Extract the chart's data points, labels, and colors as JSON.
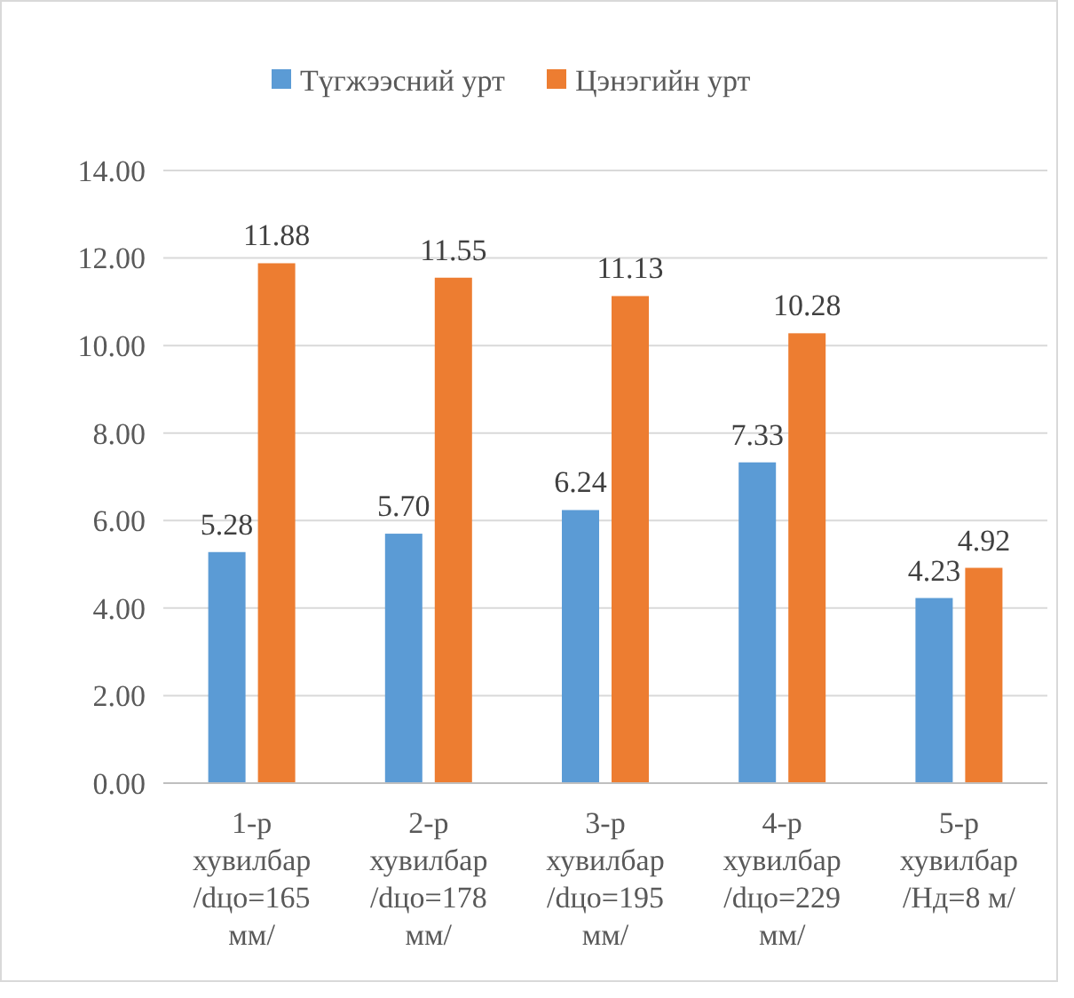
{
  "chart_data": {
    "type": "bar",
    "categories": [
      "1-р хувилбар /dцо=165 мм/",
      "2-р хувилбар /dцо=178 мм/",
      "3-р хувилбар /dцо=195 мм/",
      "4-р хувилбар /dцо=229 мм/",
      "5-р хувилбар /Нд=8 м/"
    ],
    "series": [
      {
        "name": "Түгжээсний урт",
        "color": "#5b9bd5",
        "values": [
          5.28,
          5.7,
          6.24,
          7.33,
          4.23
        ],
        "value_labels": [
          "5.28",
          "5.70",
          "6.24",
          "7.33",
          "4.23"
        ]
      },
      {
        "name": "Цэнэгийн урт",
        "color": "#ed7d31",
        "values": [
          11.88,
          11.55,
          11.13,
          10.28,
          4.92
        ],
        "value_labels": [
          "11.88",
          "11.55",
          "11.13",
          "10.28",
          "4.92"
        ]
      }
    ],
    "ylim": [
      0,
      14
    ],
    "yticks": [
      {
        "value": 0,
        "label": "0.00"
      },
      {
        "value": 2,
        "label": "2.00"
      },
      {
        "value": 4,
        "label": "4.00"
      },
      {
        "value": 6,
        "label": "6.00"
      },
      {
        "value": 8,
        "label": "8.00"
      },
      {
        "value": 10,
        "label": "10.00"
      },
      {
        "value": 12,
        "label": "12.00"
      },
      {
        "value": 14,
        "label": "14.00"
      }
    ],
    "grid": "y",
    "legend": "top"
  }
}
